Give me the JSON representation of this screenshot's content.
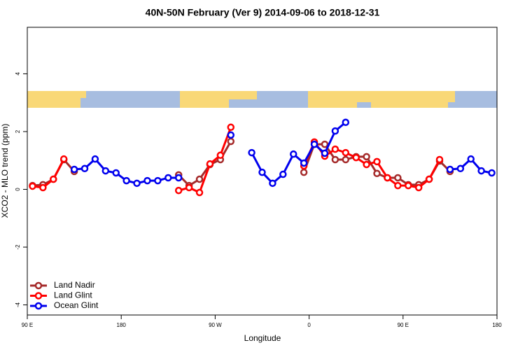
{
  "chart_data": {
    "type": "line",
    "title": "40N-50N February (Ver 9)   2014-09-06 to 2018-12-31",
    "x_label": "Longitude",
    "y_label": "XCO2 - MLO trend (ppm)",
    "x": [
      95,
      105,
      115,
      125,
      135,
      145,
      155,
      165,
      175,
      185,
      195,
      205,
      215,
      225,
      235,
      245,
      255,
      265,
      275,
      285,
      295,
      305,
      315,
      325,
      335,
      345,
      355,
      365,
      375,
      385,
      395,
      405,
      415,
      425,
      435,
      445,
      455,
      465,
      475,
      485,
      495,
      505,
      515,
      525,
      535
    ],
    "series": [
      {
        "name": "Land Nadir",
        "color": "#a52a2a",
        "values": [
          0.13,
          0.16,
          0.35,
          1.03,
          0.62,
          null,
          null,
          null,
          null,
          null,
          null,
          null,
          null,
          null,
          0.5,
          0.13,
          0.35,
          0.86,
          1.03,
          1.66,
          null,
          null,
          null,
          null,
          null,
          null,
          0.59,
          1.56,
          1.56,
          1.03,
          1.03,
          1.13,
          1.13,
          0.55,
          0.4,
          0.4,
          0.16,
          0.16,
          0.35,
          0.98,
          0.62,
          null,
          null,
          null,
          null
        ]
      },
      {
        "name": "Land Glint",
        "color": "#ff0000",
        "values": [
          0.11,
          0.06,
          0.35,
          1.05,
          null,
          null,
          null,
          null,
          null,
          null,
          null,
          null,
          null,
          null,
          -0.04,
          0.06,
          -0.11,
          0.88,
          1.18,
          2.15,
          null,
          null,
          null,
          null,
          null,
          null,
          0.81,
          1.64,
          1.15,
          1.39,
          1.27,
          1.1,
          0.86,
          0.96,
          0.4,
          0.13,
          0.13,
          0.06,
          0.35,
          1.03,
          null,
          null,
          null,
          null,
          null
        ]
      },
      {
        "name": "Ocean Glint",
        "color": "#0000ee",
        "values": [
          null,
          null,
          null,
          null,
          0.69,
          0.72,
          1.05,
          0.64,
          0.57,
          0.3,
          0.21,
          0.3,
          0.3,
          0.4,
          0.4,
          null,
          null,
          null,
          null,
          1.88,
          null,
          1.27,
          0.59,
          0.21,
          0.52,
          1.22,
          0.91,
          1.56,
          1.25,
          2.02,
          2.32,
          null,
          null,
          null,
          null,
          null,
          null,
          null,
          null,
          null,
          0.69,
          0.72,
          1.05,
          0.64,
          0.57
        ]
      }
    ],
    "xlim": [
      90,
      540
    ],
    "xticks": [
      {
        "value": 90,
        "label": "90 E"
      },
      180,
      {
        "value": 270,
        "label": "90 W"
      },
      {
        "value": 360,
        "label": "0"
      },
      {
        "value": 450,
        "label": "90 E"
      },
      {
        "value": 540,
        "label": "180"
      }
    ],
    "ylim": [
      -4.35,
      5.61
    ],
    "yticks": [
      -4,
      -2,
      0,
      2,
      4
    ],
    "legend": "bottom-left"
  }
}
